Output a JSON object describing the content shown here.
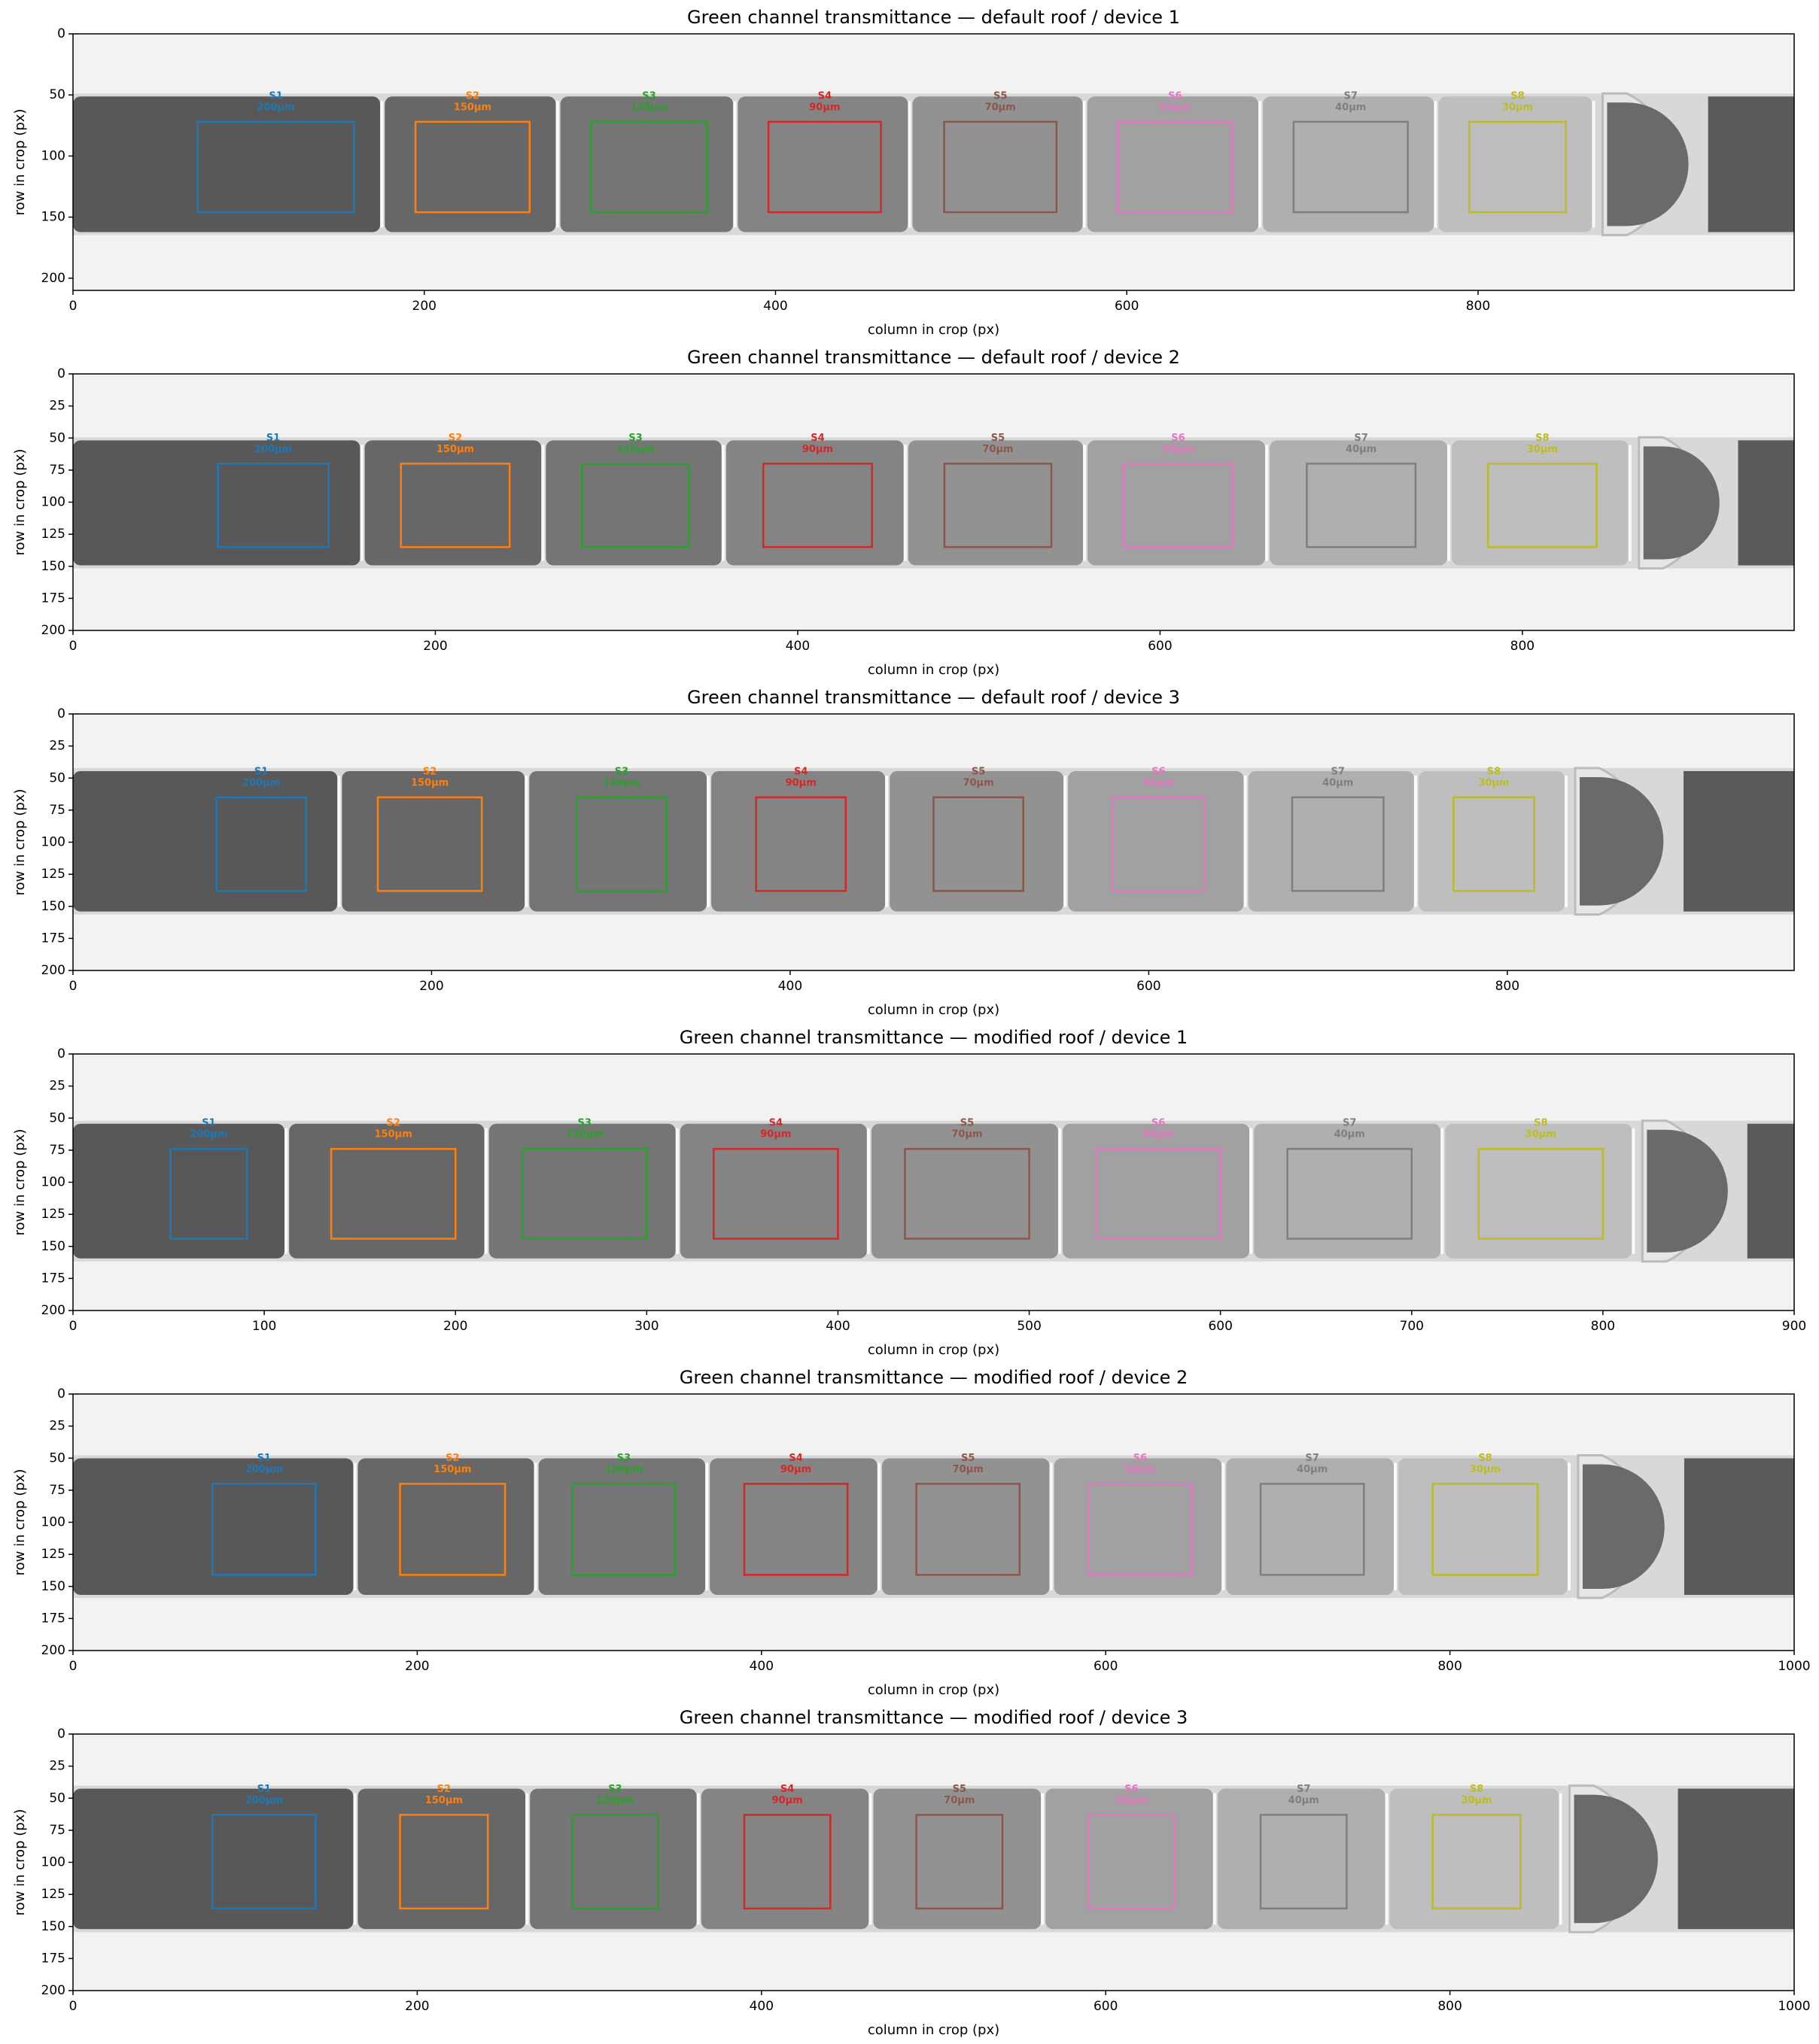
{
  "chart_data": [
    {
      "type": "roi-image",
      "title": "Green channel transmittance — default roof / device 1",
      "x_label": "column in crop (px)",
      "y_label": "row in crop (px)",
      "xlim": [
        0,
        980
      ],
      "ylim": [
        210,
        0
      ],
      "xticks": [
        0,
        200,
        400,
        600,
        800
      ],
      "yticks": [
        0,
        50,
        100,
        150,
        200
      ],
      "rois": [
        {
          "name": "S1",
          "label": "200µm",
          "color": "#1f77b4",
          "x": [
            71,
            160
          ],
          "y": [
            72,
            146
          ]
        },
        {
          "name": "S2",
          "label": "150µm",
          "color": "#ff7f0e",
          "x": [
            195,
            260
          ],
          "y": [
            72,
            146
          ]
        },
        {
          "name": "S3",
          "label": "120µm",
          "color": "#2ca02c",
          "x": [
            295,
            361
          ],
          "y": [
            72,
            146
          ]
        },
        {
          "name": "S4",
          "label": "90µm",
          "color": "#d62728",
          "x": [
            396,
            460
          ],
          "y": [
            72,
            146
          ]
        },
        {
          "name": "S5",
          "label": "70µm",
          "color": "#8c564b",
          "x": [
            496,
            560
          ],
          "y": [
            72,
            146
          ]
        },
        {
          "name": "S6",
          "label": "50µm",
          "color": "#e377c2",
          "x": [
            595,
            660
          ],
          "y": [
            72,
            146
          ]
        },
        {
          "name": "S7",
          "label": "40µm",
          "color": "#7f7f7f",
          "x": [
            695,
            760
          ],
          "y": [
            72,
            146
          ]
        },
        {
          "name": "S8",
          "label": "30µm",
          "color": "#bcbd22",
          "x": [
            795,
            850
          ],
          "y": [
            72,
            146
          ]
        }
      ]
    },
    {
      "type": "roi-image",
      "title": "Green channel transmittance — default roof / device 2",
      "x_label": "column in crop (px)",
      "y_label": "row in crop (px)",
      "xlim": [
        0,
        950
      ],
      "ylim": [
        200,
        0
      ],
      "xticks": [
        0,
        200,
        400,
        600,
        800
      ],
      "yticks": [
        0,
        25,
        50,
        75,
        100,
        125,
        150,
        175,
        200
      ],
      "rois": [
        {
          "name": "S1",
          "label": "200µm",
          "color": "#1f77b4",
          "x": [
            80,
            141
          ],
          "y": [
            70,
            135
          ]
        },
        {
          "name": "S2",
          "label": "150µm",
          "color": "#ff7f0e",
          "x": [
            181,
            241
          ],
          "y": [
            70,
            135
          ]
        },
        {
          "name": "S3",
          "label": "120µm",
          "color": "#2ca02c",
          "x": [
            281,
            340
          ],
          "y": [
            70,
            135
          ]
        },
        {
          "name": "S4",
          "label": "90µm",
          "color": "#d62728",
          "x": [
            381,
            441
          ],
          "y": [
            70,
            135
          ]
        },
        {
          "name": "S5",
          "label": "70µm",
          "color": "#8c564b",
          "x": [
            481,
            540
          ],
          "y": [
            70,
            135
          ]
        },
        {
          "name": "S6",
          "label": "50µm",
          "color": "#e377c2",
          "x": [
            580,
            640
          ],
          "y": [
            70,
            135
          ]
        },
        {
          "name": "S7",
          "label": "40µm",
          "color": "#7f7f7f",
          "x": [
            681,
            741
          ],
          "y": [
            70,
            135
          ]
        },
        {
          "name": "S8",
          "label": "30µm",
          "color": "#bcbd22",
          "x": [
            781,
            841
          ],
          "y": [
            70,
            135
          ]
        }
      ]
    },
    {
      "type": "roi-image",
      "title": "Green channel transmittance — default roof / device 3",
      "x_label": "column in crop (px)",
      "y_label": "row in crop (px)",
      "xlim": [
        0,
        960
      ],
      "ylim": [
        200,
        0
      ],
      "xticks": [
        0,
        200,
        400,
        600,
        800
      ],
      "yticks": [
        0,
        25,
        50,
        75,
        100,
        125,
        150,
        175,
        200
      ],
      "rois": [
        {
          "name": "S1",
          "label": "200µm",
          "color": "#1f77b4",
          "x": [
            80,
            130
          ],
          "y": [
            65,
            138
          ]
        },
        {
          "name": "S2",
          "label": "150µm",
          "color": "#ff7f0e",
          "x": [
            170,
            228
          ],
          "y": [
            65,
            138
          ]
        },
        {
          "name": "S3",
          "label": "120µm",
          "color": "#2ca02c",
          "x": [
            281,
            331
          ],
          "y": [
            65,
            138
          ]
        },
        {
          "name": "S4",
          "label": "90µm",
          "color": "#d62728",
          "x": [
            381,
            431
          ],
          "y": [
            65,
            138
          ]
        },
        {
          "name": "S5",
          "label": "70µm",
          "color": "#8c564b",
          "x": [
            480,
            530
          ],
          "y": [
            65,
            138
          ]
        },
        {
          "name": "S6",
          "label": "50µm",
          "color": "#e377c2",
          "x": [
            580,
            631
          ],
          "y": [
            65,
            138
          ]
        },
        {
          "name": "S7",
          "label": "40µm",
          "color": "#7f7f7f",
          "x": [
            680,
            731
          ],
          "y": [
            65,
            138
          ]
        },
        {
          "name": "S8",
          "label": "30µm",
          "color": "#bcbd22",
          "x": [
            770,
            815
          ],
          "y": [
            65,
            138
          ]
        }
      ]
    },
    {
      "type": "roi-image",
      "title": "Green channel transmittance — modified roof / device 1",
      "x_label": "column in crop (px)",
      "y_label": "row in crop (px)",
      "xlim": [
        0,
        900
      ],
      "ylim": [
        200,
        0
      ],
      "xticks": [
        0,
        100,
        200,
        300,
        400,
        500,
        600,
        700,
        800,
        900
      ],
      "yticks": [
        0,
        25,
        50,
        75,
        100,
        125,
        150,
        175,
        200
      ],
      "rois": [
        {
          "name": "S1",
          "label": "200µm",
          "color": "#1f77b4",
          "x": [
            51,
            91
          ],
          "y": [
            74,
            144
          ]
        },
        {
          "name": "S2",
          "label": "150µm",
          "color": "#ff7f0e",
          "x": [
            135,
            200
          ],
          "y": [
            74,
            144
          ]
        },
        {
          "name": "S3",
          "label": "120µm",
          "color": "#2ca02c",
          "x": [
            235,
            300
          ],
          "y": [
            74,
            144
          ]
        },
        {
          "name": "S4",
          "label": "90µm",
          "color": "#d62728",
          "x": [
            335,
            400
          ],
          "y": [
            74,
            144
          ]
        },
        {
          "name": "S5",
          "label": "70µm",
          "color": "#8c564b",
          "x": [
            435,
            500
          ],
          "y": [
            74,
            144
          ]
        },
        {
          "name": "S6",
          "label": "50µm",
          "color": "#e377c2",
          "x": [
            535,
            600
          ],
          "y": [
            74,
            144
          ]
        },
        {
          "name": "S7",
          "label": "40µm",
          "color": "#7f7f7f",
          "x": [
            635,
            700
          ],
          "y": [
            74,
            144
          ]
        },
        {
          "name": "S8",
          "label": "30µm",
          "color": "#bcbd22",
          "x": [
            735,
            800
          ],
          "y": [
            74,
            144
          ]
        }
      ]
    },
    {
      "type": "roi-image",
      "title": "Green channel transmittance — modified roof / device 2",
      "x_label": "column in crop (px)",
      "y_label": "row in crop (px)",
      "xlim": [
        0,
        1000
      ],
      "ylim": [
        200,
        0
      ],
      "xticks": [
        0,
        200,
        400,
        600,
        800,
        1000
      ],
      "yticks": [
        0,
        25,
        50,
        75,
        100,
        125,
        150,
        175,
        200
      ],
      "rois": [
        {
          "name": "S1",
          "label": "200µm",
          "color": "#1f77b4",
          "x": [
            81,
            141
          ],
          "y": [
            70,
            141
          ]
        },
        {
          "name": "S2",
          "label": "150µm",
          "color": "#ff7f0e",
          "x": [
            190,
            251
          ],
          "y": [
            70,
            141
          ]
        },
        {
          "name": "S3",
          "label": "120µm",
          "color": "#2ca02c",
          "x": [
            290,
            350
          ],
          "y": [
            70,
            141
          ]
        },
        {
          "name": "S4",
          "label": "90µm",
          "color": "#d62728",
          "x": [
            390,
            450
          ],
          "y": [
            70,
            141
          ]
        },
        {
          "name": "S5",
          "label": "70µm",
          "color": "#8c564b",
          "x": [
            490,
            550
          ],
          "y": [
            70,
            141
          ]
        },
        {
          "name": "S6",
          "label": "50µm",
          "color": "#e377c2",
          "x": [
            590,
            650
          ],
          "y": [
            70,
            141
          ]
        },
        {
          "name": "S7",
          "label": "40µm",
          "color": "#7f7f7f",
          "x": [
            690,
            750
          ],
          "y": [
            70,
            141
          ]
        },
        {
          "name": "S8",
          "label": "30µm",
          "color": "#bcbd22",
          "x": [
            790,
            851
          ],
          "y": [
            70,
            141
          ]
        }
      ]
    },
    {
      "type": "roi-image",
      "title": "Green channel transmittance — modified roof / device 3",
      "x_label": "column in crop (px)",
      "y_label": "row in crop (px)",
      "xlim": [
        0,
        1000
      ],
      "ylim": [
        200,
        0
      ],
      "xticks": [
        0,
        200,
        400,
        600,
        800,
        1000
      ],
      "yticks": [
        0,
        25,
        50,
        75,
        100,
        125,
        150,
        175,
        200
      ],
      "rois": [
        {
          "name": "S1",
          "label": "200µm",
          "color": "#1f77b4",
          "x": [
            81,
            141
          ],
          "y": [
            63,
            136
          ]
        },
        {
          "name": "S2",
          "label": "150µm",
          "color": "#ff7f0e",
          "x": [
            190,
            241
          ],
          "y": [
            63,
            136
          ]
        },
        {
          "name": "S3",
          "label": "120µm",
          "color": "#2ca02c",
          "x": [
            290,
            340
          ],
          "y": [
            63,
            136
          ]
        },
        {
          "name": "S4",
          "label": "90µm",
          "color": "#d62728",
          "x": [
            390,
            440
          ],
          "y": [
            63,
            136
          ]
        },
        {
          "name": "S5",
          "label": "70µm",
          "color": "#8c564b",
          "x": [
            490,
            540
          ],
          "y": [
            63,
            136
          ]
        },
        {
          "name": "S6",
          "label": "50µm",
          "color": "#e377c2",
          "x": [
            590,
            640
          ],
          "y": [
            63,
            136
          ]
        },
        {
          "name": "S7",
          "label": "40µm",
          "color": "#7f7f7f",
          "x": [
            690,
            740
          ],
          "y": [
            63,
            136
          ]
        },
        {
          "name": "S8",
          "label": "30µm",
          "color": "#bcbd22",
          "x": [
            790,
            841
          ],
          "y": [
            63,
            136
          ]
        }
      ]
    }
  ]
}
